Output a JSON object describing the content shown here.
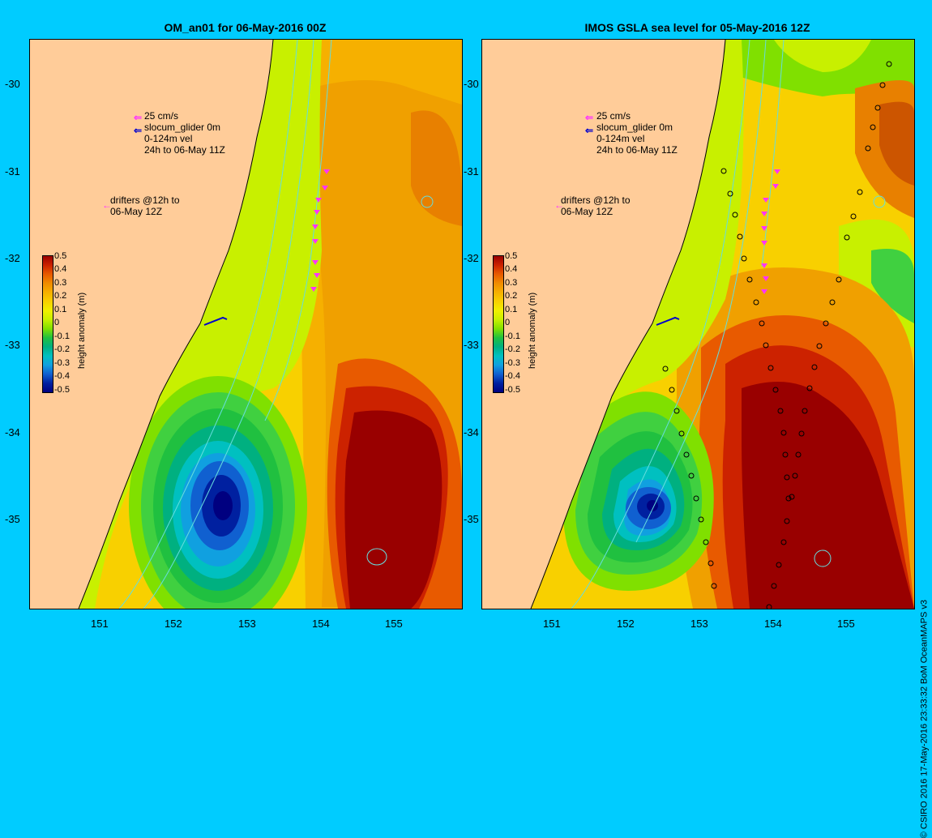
{
  "left_panel": {
    "title": "OM_an01 for 06-May-2016 00Z"
  },
  "right_panel": {
    "title": "IMOS GSLA sea level  for 05-May-2016 12Z"
  },
  "axes": {
    "lat_ticks": [
      "-30",
      "-31",
      "-32",
      "-33",
      "-34",
      "-35"
    ],
    "lon_ticks": [
      "151",
      "152",
      "153",
      "154",
      "155"
    ]
  },
  "legend": {
    "line1": "25 cm/s",
    "line2": "slocum_glider 0m",
    "line3": "0-124m vel",
    "line4": "24h to 06-May 11Z",
    "drifters1": "drifters @12h to",
    "drifters2": "06-May 12Z"
  },
  "colorbar": {
    "title": "height anomaly (m)",
    "labels": [
      "0.5",
      "0.4",
      "0.3",
      "0.2",
      "0.1",
      "0",
      "-0.1",
      "-0.2",
      "-0.3",
      "-0.4",
      "-0.5"
    ],
    "colors": [
      "#990000",
      "#cc2200",
      "#e85a00",
      "#f08c00",
      "#f6b000",
      "#f8d000",
      "#f0f000",
      "#c8f000",
      "#80e000",
      "#20c040",
      "#00b080",
      "#00c0c0",
      "#10a0e0",
      "#1060d0",
      "#0020a0",
      "#000080"
    ]
  },
  "credit": "© CSIRO 2016  17-May-2016 23:33:32 BoM OceanMAPS v3",
  "colors": {
    "background": "#00ccff",
    "land": "#ffcc99",
    "coast_fill": "#aa9977",
    "glider": "#ff33ff",
    "contour": "#66dddd"
  }
}
